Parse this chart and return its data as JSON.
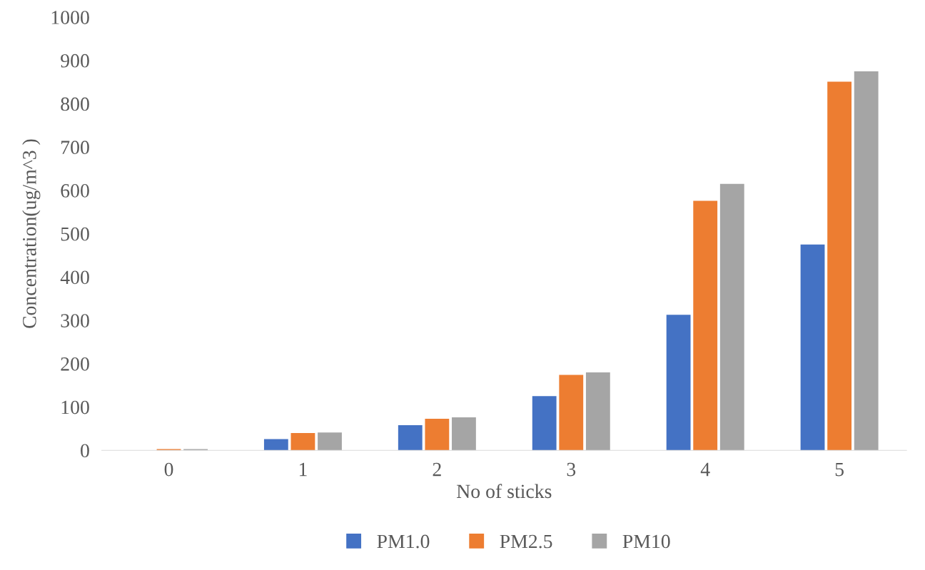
{
  "chart_data": {
    "type": "bar",
    "xlabel": "No of sticks",
    "ylabel": "Concentration(ug/m^3 )",
    "categories": [
      "0",
      "1",
      "2",
      "3",
      "4",
      "5"
    ],
    "series": [
      {
        "name": "PM1.0",
        "color": "#4472c4",
        "values": [
          null,
          26,
          58,
          125,
          313,
          475
        ]
      },
      {
        "name": "PM2.5",
        "color": "#ed7d31",
        "values": [
          3,
          40,
          73,
          174,
          576,
          851
        ]
      },
      {
        "name": "PM10",
        "color": "#a5a5a5",
        "values": [
          3,
          41,
          76,
          180,
          615,
          875
        ]
      }
    ],
    "ylim": [
      0,
      1000
    ],
    "yticks": [
      0,
      100,
      200,
      300,
      400,
      500,
      600,
      700,
      800,
      900,
      1000
    ],
    "grid": false,
    "legend": "bottom"
  }
}
